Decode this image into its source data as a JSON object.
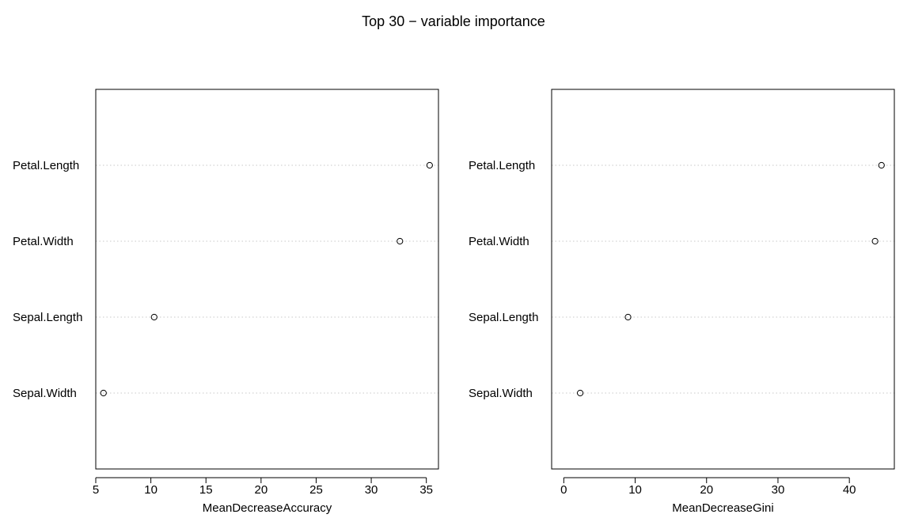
{
  "title": "Top 30 − variable importance",
  "chart_data": [
    {
      "type": "scatter",
      "style": "dotchart",
      "categories": [
        "Petal.Length",
        "Petal.Width",
        "Sepal.Length",
        "Sepal.Width"
      ],
      "values": [
        35.3,
        32.6,
        10.3,
        5.7
      ],
      "xlabel": "MeanDecreaseAccuracy",
      "xticks": [
        5,
        10,
        15,
        20,
        25,
        30,
        35
      ],
      "xlim": [
        5,
        36.1
      ],
      "grid": "dotted horizontal"
    },
    {
      "type": "scatter",
      "style": "dotchart",
      "categories": [
        "Petal.Length",
        "Petal.Width",
        "Sepal.Length",
        "Sepal.Width"
      ],
      "values": [
        44.5,
        43.6,
        9.0,
        2.3
      ],
      "xlabel": "MeanDecreaseGini",
      "xticks": [
        0,
        10,
        20,
        30,
        40
      ],
      "xlim": [
        -1.7,
        46.3
      ],
      "grid": "dotted horizontal"
    }
  ]
}
